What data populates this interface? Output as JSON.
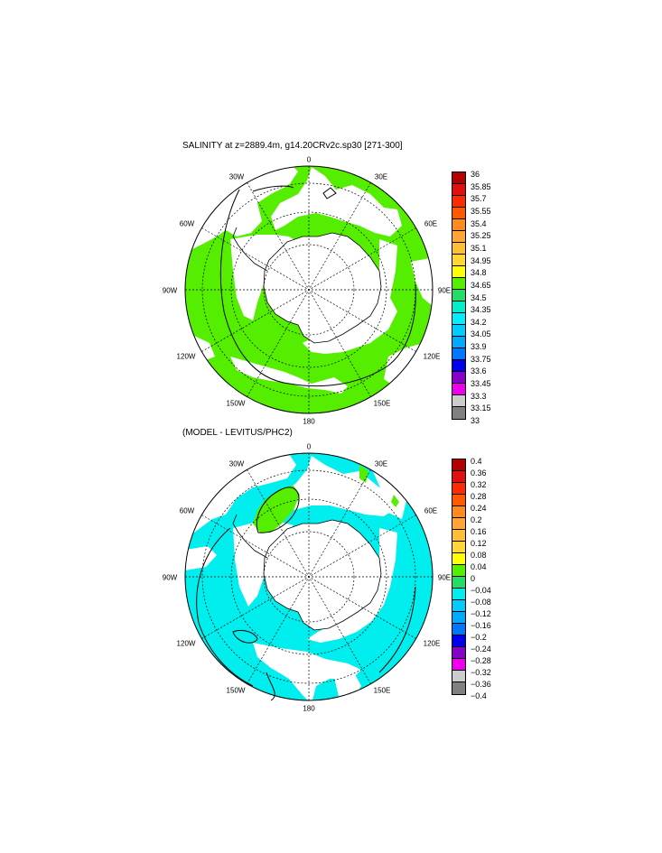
{
  "panels": [
    {
      "title": "SALINITY at z=2889.4m, g14.20CRv2c.sp30 [271-300]",
      "lon_labels": [
        "0",
        "30E",
        "60E",
        "90E",
        "120E",
        "150E",
        "180",
        "150W",
        "120W",
        "90W",
        "60W",
        "30W"
      ],
      "colorbar": {
        "labels": [
          "36",
          "35.85",
          "35.7",
          "35.55",
          "35.4",
          "35.25",
          "35.1",
          "34.95",
          "34.8",
          "34.65",
          "34.5",
          "34.35",
          "34.2",
          "34.05",
          "33.9",
          "33.75",
          "33.6",
          "33.45",
          "33.3",
          "33.15",
          "33"
        ],
        "colors": [
          "#b30000",
          "#e01010",
          "#ff2a00",
          "#ff5a00",
          "#ff8c1a",
          "#ffa533",
          "#ffbf33",
          "#ffd633",
          "#ffff00",
          "#55ee00",
          "#22dd66",
          "#00eecc",
          "#00eeff",
          "#00ccff",
          "#00aaff",
          "#0077ff",
          "#0000ee",
          "#8800cc",
          "#ee00ee",
          "#cccccc",
          "#808080"
        ]
      },
      "field_color": "#55ee00",
      "contrast_color": "#ffffff"
    },
    {
      "title": "(MODEL - LEVITUS/PHC2)",
      "lon_labels": [
        "0",
        "30E",
        "60E",
        "90E",
        "120E",
        "150E",
        "180",
        "150W",
        "120W",
        "90W",
        "60W",
        "30W"
      ],
      "colorbar": {
        "labels": [
          "0.4",
          "0.36",
          "0.32",
          "0.28",
          "0.24",
          "0.2",
          "0.16",
          "0.12",
          "0.08",
          "0.04",
          "0",
          "−0.04",
          "−0.08",
          "−0.12",
          "−0.16",
          "−0.2",
          "−0.24",
          "−0.28",
          "−0.32",
          "−0.36",
          "−0.4"
        ],
        "colors": [
          "#b30000",
          "#e01010",
          "#ff2a00",
          "#ff5a00",
          "#ff8c1a",
          "#ffa533",
          "#ffbf33",
          "#ffd633",
          "#ffff00",
          "#55ee00",
          "#22dd66",
          "#00eeee",
          "#00ccff",
          "#00aaff",
          "#0077ff",
          "#0000ee",
          "#8800cc",
          "#ee00ee",
          "#cccccc",
          "#808080"
        ]
      },
      "field_color": "#00eeee",
      "contrast_color": "#ffffff",
      "patch_color": "#55ee00"
    }
  ]
}
